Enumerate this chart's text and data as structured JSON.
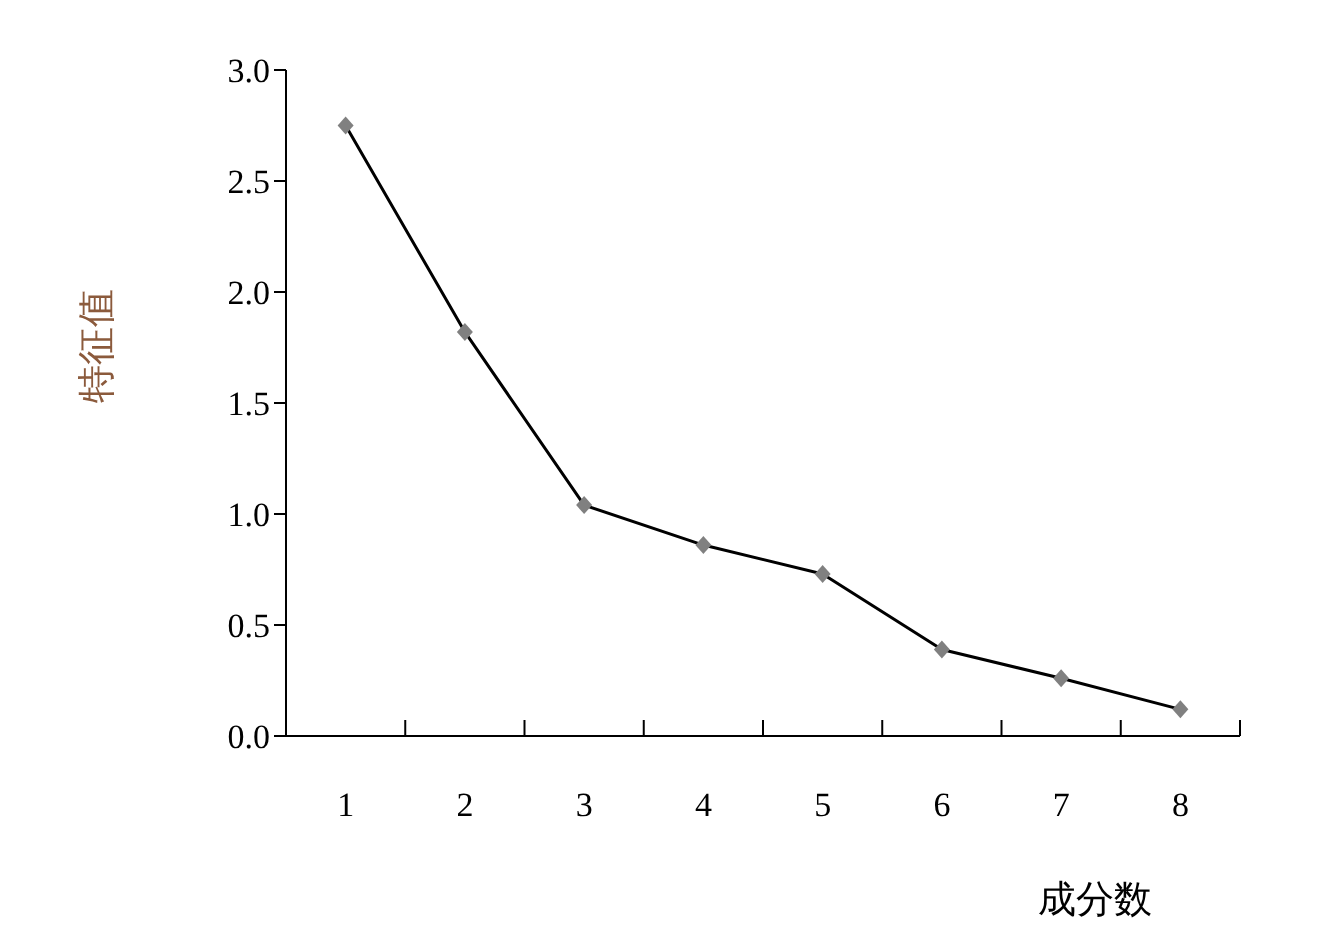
{
  "chart_data": {
    "type": "line",
    "xlabel": "成分数",
    "ylabel": "特征值",
    "categories": [
      "1",
      "2",
      "3",
      "4",
      "5",
      "6",
      "7",
      "8"
    ],
    "series": [
      {
        "color": "#000000",
        "values": [
          2.75,
          1.82,
          1.04,
          0.86,
          0.73,
          0.39,
          0.26,
          0.12
        ]
      }
    ],
    "ylim": [
      0,
      3
    ],
    "yticks": [
      {
        "value": 0,
        "label": "0.0"
      },
      0.5,
      {
        "value": 1,
        "label": "1.0"
      },
      1.5,
      {
        "value": 2,
        "label": "2.0"
      },
      2.5,
      {
        "value": 3,
        "label": "3.0"
      }
    ],
    "marker": "diamond",
    "line_style": "solid",
    "grid": false,
    "legend": false
  }
}
